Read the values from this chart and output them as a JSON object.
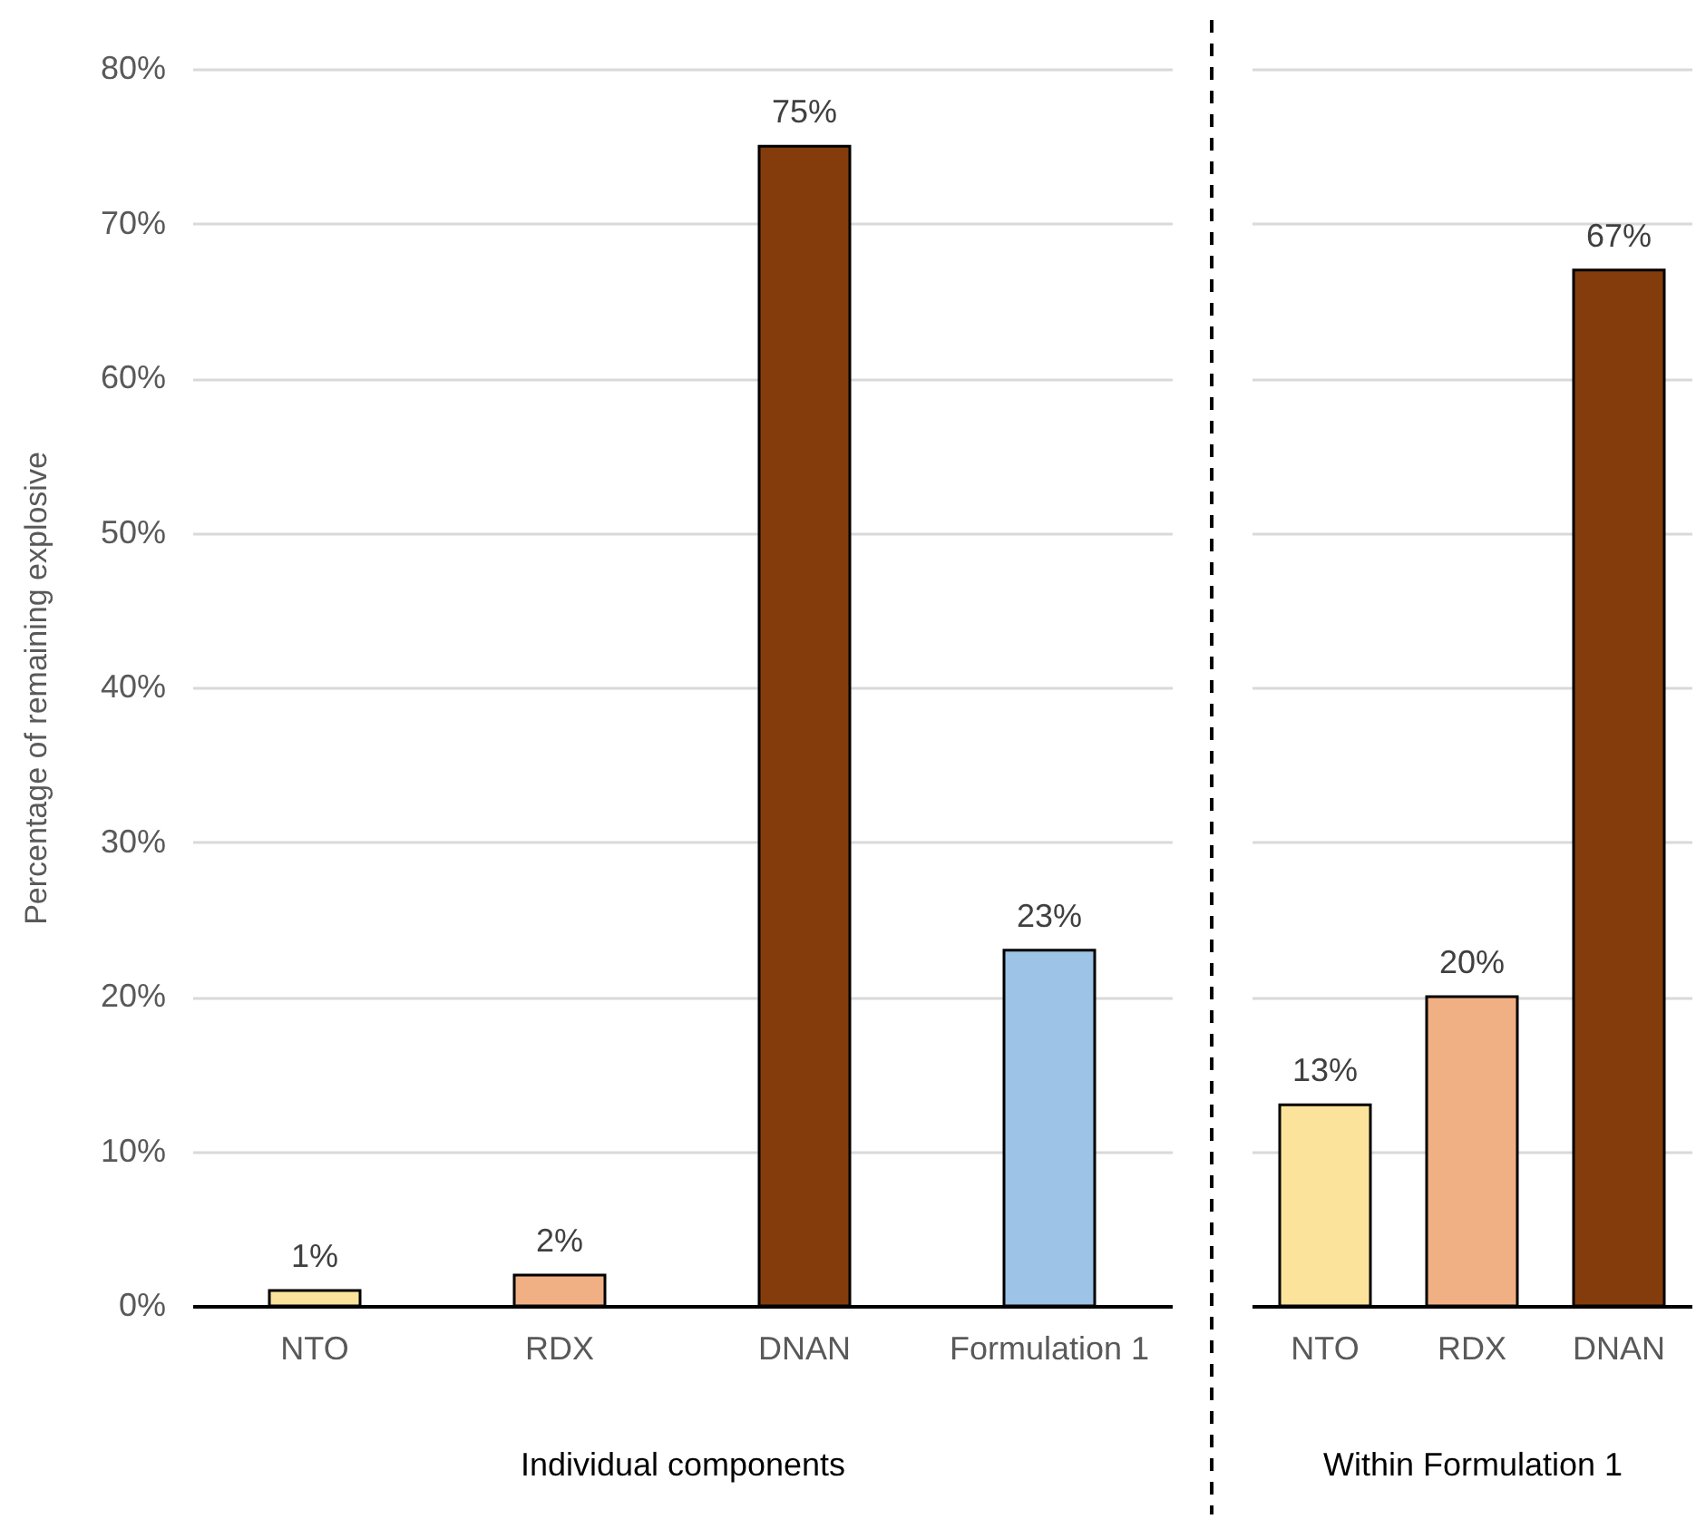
{
  "chart_data": [
    {
      "type": "bar",
      "categories": [
        "NTO",
        "RDX",
        "DNAN",
        "Formulation 1"
      ],
      "values": [
        1,
        2,
        75,
        23
      ],
      "colors": [
        "#fbe39b",
        "#f0b084",
        "#843c0c",
        "#9dc3e6"
      ],
      "value_labels": [
        "1%",
        "2%",
        "75%",
        "23%"
      ],
      "xlabel": "Individual components",
      "ylabel": "Percentage of remaining explosive",
      "ylim": [
        0,
        80
      ],
      "yticks": [
        {
          "value": 0,
          "label": "0%"
        },
        {
          "value": 10,
          "label": "10%"
        },
        {
          "value": 20,
          "label": "20%"
        },
        {
          "value": 30,
          "label": "30%"
        },
        {
          "value": 40,
          "label": "40%"
        },
        {
          "value": 50,
          "label": "50%"
        },
        {
          "value": 60,
          "label": "60%"
        },
        {
          "value": 70,
          "label": "70%"
        },
        {
          "value": 80,
          "label": "80%"
        }
      ],
      "grid": "y"
    },
    {
      "type": "bar",
      "categories": [
        "NTO",
        "RDX",
        "DNAN"
      ],
      "values": [
        13,
        20,
        67
      ],
      "colors": [
        "#fbe39b",
        "#f0b084",
        "#843c0c"
      ],
      "value_labels": [
        "13%",
        "20%",
        "67%"
      ],
      "xlabel": "Within Formulation 1",
      "ylim": [
        0,
        80
      ],
      "yticks": [
        {
          "value": 0,
          "label": null
        },
        {
          "value": 10,
          "label": null
        },
        {
          "value": 20,
          "label": null
        },
        {
          "value": 30,
          "label": null
        },
        {
          "value": 40,
          "label": null
        },
        {
          "value": 50,
          "label": null
        },
        {
          "value": 60,
          "label": null
        },
        {
          "value": 70,
          "label": null
        },
        {
          "value": 80,
          "label": null
        }
      ],
      "grid": "y",
      "tick_labels": "x"
    }
  ]
}
